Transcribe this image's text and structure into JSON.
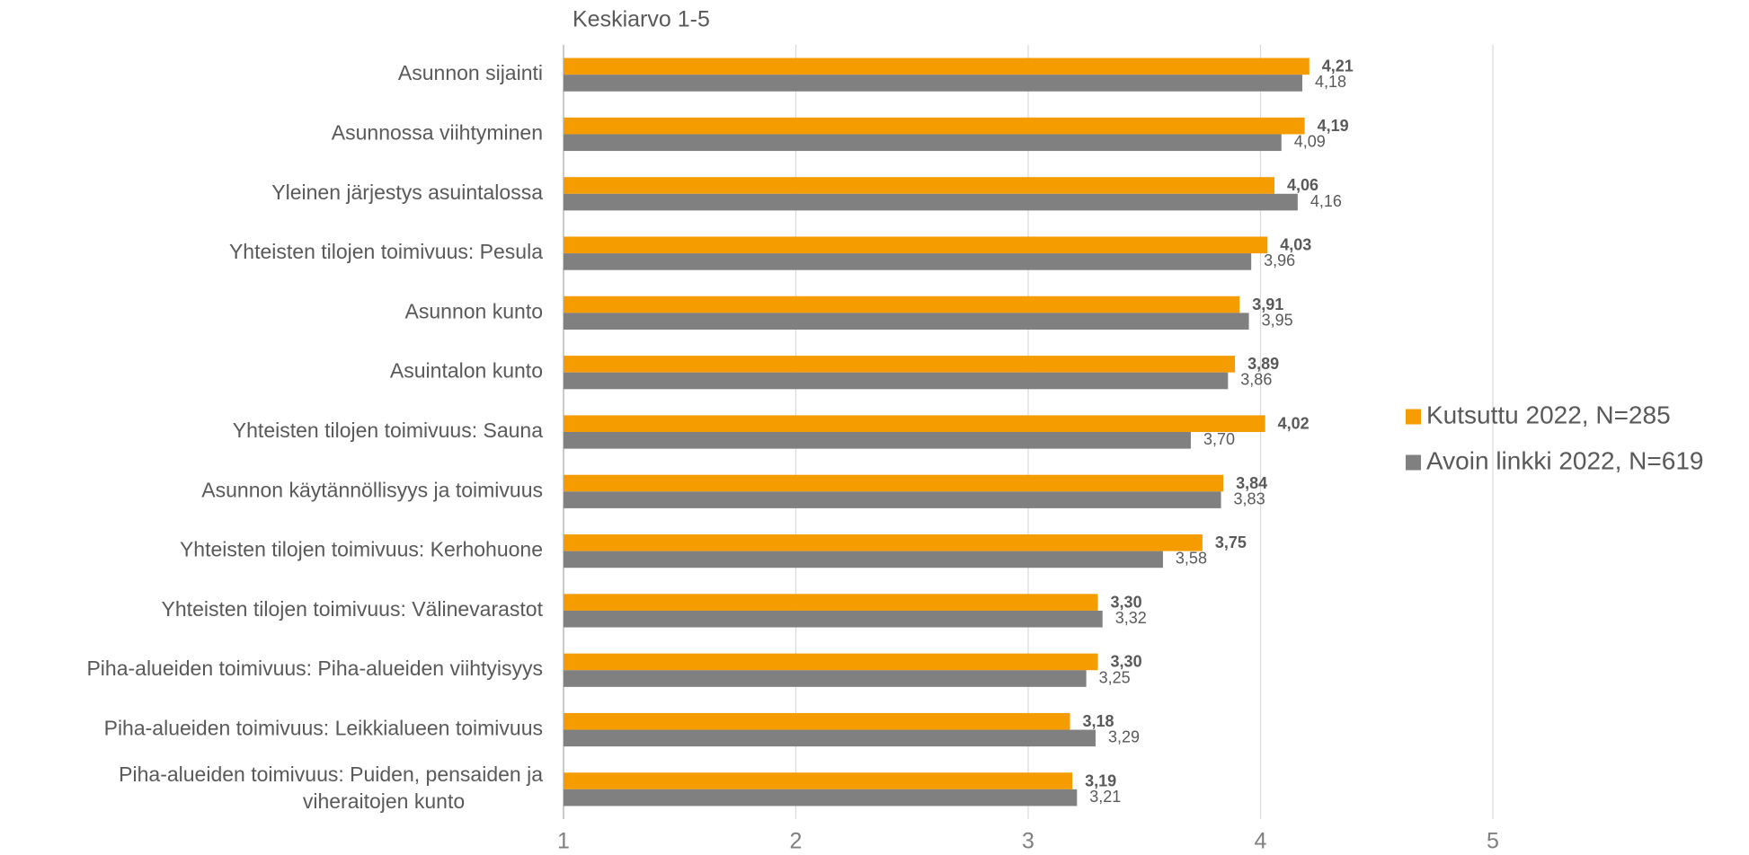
{
  "chart_data": {
    "type": "bar",
    "orientation": "horizontal",
    "title": "Keskiarvo 1-5",
    "categories": [
      "Asunnon sijainti",
      "Asunnossa viihtyminen",
      "Yleinen järjestys asuintalossa",
      "Yhteisten tilojen toimivuus: Pesula",
      "Asunnon kunto",
      "Asuintalon kunto",
      "Yhteisten tilojen toimivuus: Sauna",
      "Asunnon käytännöllisyys ja toimivuus",
      "Yhteisten tilojen toimivuus: Kerhohuone",
      "Yhteisten tilojen toimivuus: Välinevarastot",
      "Piha-alueiden toimivuus: Piha-alueiden viihtyisyys",
      "Piha-alueiden toimivuus: Leikkialueen toimivuus",
      "Piha-alueiden toimivuus: Puiden, pensaiden ja\nviheraitojen kunto"
    ],
    "series": [
      {
        "name": "Kutsuttu 2022, N=285",
        "color": "#f59c00",
        "values": [
          4.21,
          4.19,
          4.06,
          4.03,
          3.91,
          3.89,
          4.02,
          3.84,
          3.75,
          3.3,
          3.3,
          3.18,
          3.19
        ],
        "value_labels": [
          "4,21",
          "4,19",
          "4,06",
          "4,03",
          "3,91",
          "3,89",
          "4,02",
          "3,84",
          "3,75",
          "3,30",
          "3,30",
          "3,18",
          "3,19"
        ]
      },
      {
        "name": "Avoin linkki 2022, N=619",
        "color": "#808080",
        "values": [
          4.18,
          4.09,
          4.16,
          3.96,
          3.95,
          3.86,
          3.7,
          3.83,
          3.58,
          3.32,
          3.25,
          3.29,
          3.21
        ],
        "value_labels": [
          "4,18",
          "4,09",
          "4,16",
          "3,96",
          "3,95",
          "3,86",
          "3,70",
          "3,83",
          "3,58",
          "3,32",
          "3,25",
          "3,29",
          "3,21"
        ]
      }
    ],
    "xlim": [
      1,
      5
    ],
    "xticks": [
      1,
      2,
      3,
      4,
      5
    ],
    "grid": true,
    "legend": "right"
  }
}
